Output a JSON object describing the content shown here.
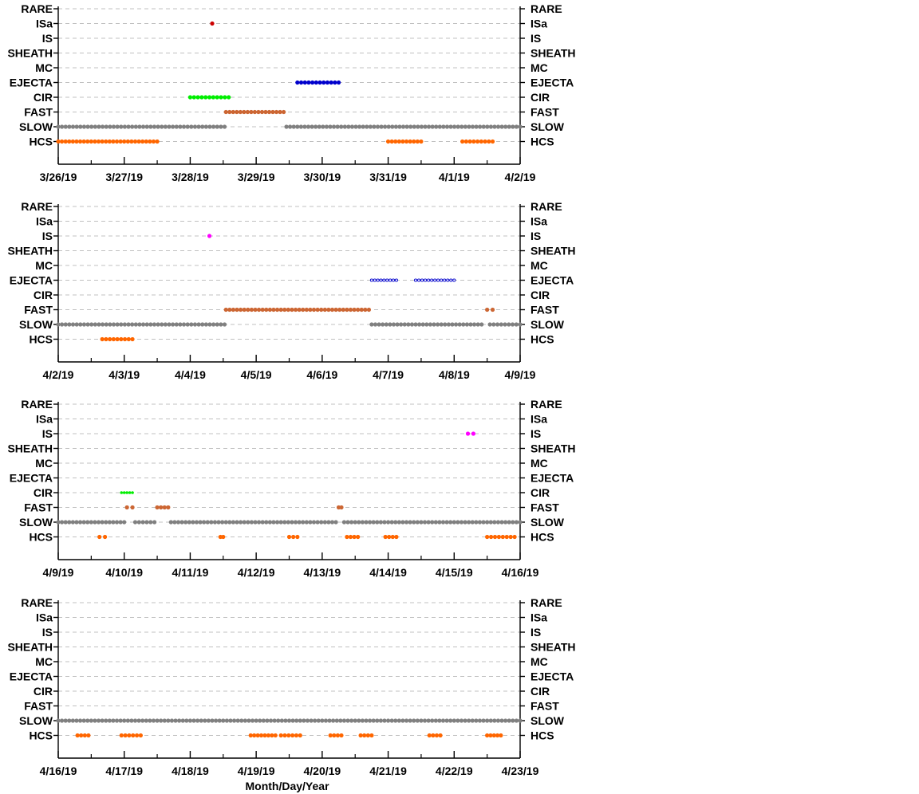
{
  "categories": [
    "RARE",
    "ISa",
    "IS",
    "SHEATH",
    "MC",
    "EJECTA",
    "CIR",
    "FAST",
    "SLOW",
    "HCS"
  ],
  "colors": {
    "ISa": "#cc0000",
    "IS": "#ff00ff",
    "EJECTA": "#0000cc",
    "CIR": "#00ee00",
    "FAST": "#cc6633",
    "SLOW": "#808080",
    "HCS": "#ff6600",
    "axis": "#000000",
    "grid": "#c0c0c0"
  },
  "xlabel": "Month/Day/Year",
  "chart_data": [
    {
      "type": "scatter",
      "grid": true,
      "y_categories": [
        "RARE",
        "ISa",
        "IS",
        "SHEATH",
        "MC",
        "EJECTA",
        "CIR",
        "FAST",
        "SLOW",
        "HCS"
      ],
      "x_range": [
        "3/26/19",
        "4/2/19"
      ],
      "x_ticks": [
        "3/26/19",
        "3/27/19",
        "3/28/19",
        "3/29/19",
        "3/30/19",
        "3/31/19",
        "4/1/19",
        "4/2/19"
      ],
      "segments": [
        {
          "cat": "ISa",
          "start": "3/28/19 08:00",
          "end": "3/28/19 08:00",
          "style": "dense"
        },
        {
          "cat": "EJECTA",
          "start": "3/29/19 15:00",
          "end": "3/30/19 06:00",
          "style": "dense"
        },
        {
          "cat": "CIR",
          "start": "3/28/19 00:00",
          "end": "3/28/19 14:00",
          "style": "dense"
        },
        {
          "cat": "FAST",
          "start": "3/28/19 13:00",
          "end": "3/29/19 10:00",
          "style": "dense"
        },
        {
          "cat": "SLOW",
          "start": "3/26/19 00:00",
          "end": "3/28/19 12:30",
          "style": "dense"
        },
        {
          "cat": "SLOW",
          "start": "3/29/19 11:00",
          "end": "4/2/19 00:00",
          "style": "dense"
        },
        {
          "cat": "HCS",
          "start": "3/26/19 00:00",
          "end": "3/27/19 12:00",
          "style": "dense"
        },
        {
          "cat": "HCS",
          "start": "3/31/19 00:00",
          "end": "3/31/19 12:00",
          "style": "dense"
        },
        {
          "cat": "HCS",
          "start": "4/1/19 03:00",
          "end": "4/1/19 14:00",
          "style": "dense"
        }
      ]
    },
    {
      "type": "scatter",
      "grid": true,
      "y_categories": [
        "RARE",
        "ISa",
        "IS",
        "SHEATH",
        "MC",
        "EJECTA",
        "CIR",
        "FAST",
        "SLOW",
        "HCS"
      ],
      "x_range": [
        "4/2/19",
        "4/9/19"
      ],
      "x_ticks": [
        "4/2/19",
        "4/3/19",
        "4/4/19",
        "4/5/19",
        "4/6/19",
        "4/7/19",
        "4/8/19",
        "4/9/19"
      ],
      "segments": [
        {
          "cat": "IS",
          "start": "4/4/19 07:00",
          "end": "4/4/19 07:00",
          "style": "dense"
        },
        {
          "cat": "EJECTA",
          "start": "4/6/19 18:00",
          "end": "4/7/19 03:00",
          "style": "open"
        },
        {
          "cat": "EJECTA",
          "start": "4/7/19 10:00",
          "end": "4/8/19 00:00",
          "style": "open"
        },
        {
          "cat": "FAST",
          "start": "4/4/19 13:00",
          "end": "4/6/19 17:00",
          "style": "dense"
        },
        {
          "cat": "FAST",
          "start": "4/8/19 12:00",
          "end": "4/8/19 14:00",
          "style": "dense"
        },
        {
          "cat": "SLOW",
          "start": "4/2/19 00:00",
          "end": "4/4/19 12:30",
          "style": "dense"
        },
        {
          "cat": "SLOW",
          "start": "4/6/19 18:00",
          "end": "4/8/19 10:00",
          "style": "dense"
        },
        {
          "cat": "SLOW",
          "start": "4/8/19 13:00",
          "end": "4/9/19 00:00",
          "style": "dense"
        },
        {
          "cat": "HCS",
          "start": "4/2/19 16:00",
          "end": "4/3/19 03:00",
          "style": "dense"
        }
      ]
    },
    {
      "type": "scatter",
      "grid": true,
      "y_categories": [
        "RARE",
        "ISa",
        "IS",
        "SHEATH",
        "MC",
        "EJECTA",
        "CIR",
        "FAST",
        "SLOW",
        "HCS"
      ],
      "x_range": [
        "4/9/19",
        "4/16/19"
      ],
      "x_ticks": [
        "4/9/19",
        "4/10/19",
        "4/11/19",
        "4/12/19",
        "4/13/19",
        "4/14/19",
        "4/15/19",
        "4/16/19"
      ],
      "segments": [
        {
          "cat": "IS",
          "start": "4/15/19 05:00",
          "end": "4/15/19 07:00",
          "style": "dense"
        },
        {
          "cat": "CIR",
          "start": "4/9/19 23:00",
          "end": "4/10/19 03:00",
          "style": "sparse"
        },
        {
          "cat": "FAST",
          "start": "4/10/19 01:00",
          "end": "4/10/19 03:00",
          "style": "dense"
        },
        {
          "cat": "FAST",
          "start": "4/10/19 12:00",
          "end": "4/10/19 16:00",
          "style": "dense"
        },
        {
          "cat": "FAST",
          "start": "4/13/19 06:00",
          "end": "4/13/19 07:00",
          "style": "dense"
        },
        {
          "cat": "SLOW",
          "start": "4/9/19 00:00",
          "end": "4/10/19 00:00",
          "style": "dense"
        },
        {
          "cat": "SLOW",
          "start": "4/10/19 04:00",
          "end": "4/10/19 11:00",
          "style": "dense"
        },
        {
          "cat": "SLOW",
          "start": "4/10/19 17:00",
          "end": "4/13/19 05:00",
          "style": "dense"
        },
        {
          "cat": "SLOW",
          "start": "4/13/19 08:00",
          "end": "4/16/19 00:00",
          "style": "dense"
        },
        {
          "cat": "HCS",
          "start": "4/9/19 15:00",
          "end": "4/9/19 17:00",
          "style": "dense"
        },
        {
          "cat": "HCS",
          "start": "4/11/19 11:00",
          "end": "4/11/19 12:00",
          "style": "dense"
        },
        {
          "cat": "HCS",
          "start": "4/12/19 12:00",
          "end": "4/12/19 15:00",
          "style": "dense"
        },
        {
          "cat": "HCS",
          "start": "4/13/19 09:00",
          "end": "4/13/19 13:00",
          "style": "dense"
        },
        {
          "cat": "HCS",
          "start": "4/13/19 23:00",
          "end": "4/14/19 03:00",
          "style": "dense"
        },
        {
          "cat": "HCS",
          "start": "4/15/19 12:00",
          "end": "4/15/19 22:00",
          "style": "dense"
        }
      ]
    },
    {
      "type": "scatter",
      "grid": true,
      "y_categories": [
        "RARE",
        "ISa",
        "IS",
        "SHEATH",
        "MC",
        "EJECTA",
        "CIR",
        "FAST",
        "SLOW",
        "HCS"
      ],
      "x_range": [
        "4/16/19",
        "4/23/19"
      ],
      "x_ticks": [
        "4/16/19",
        "4/17/19",
        "4/18/19",
        "4/19/19",
        "4/20/19",
        "4/21/19",
        "4/22/19",
        "4/23/19"
      ],
      "segments": [
        {
          "cat": "SLOW",
          "start": "4/16/19 00:00",
          "end": "4/23/19 00:00",
          "style": "dense"
        },
        {
          "cat": "HCS",
          "start": "4/16/19 07:00",
          "end": "4/16/19 11:00",
          "style": "dense"
        },
        {
          "cat": "HCS",
          "start": "4/16/19 23:00",
          "end": "4/17/19 06:00",
          "style": "dense"
        },
        {
          "cat": "HCS",
          "start": "4/18/19 22:00",
          "end": "4/19/19 07:00",
          "style": "dense"
        },
        {
          "cat": "HCS",
          "start": "4/19/19 09:00",
          "end": "4/19/19 16:00",
          "style": "dense"
        },
        {
          "cat": "HCS",
          "start": "4/20/19 03:00",
          "end": "4/20/19 07:00",
          "style": "dense"
        },
        {
          "cat": "HCS",
          "start": "4/20/19 14:00",
          "end": "4/20/19 18:00",
          "style": "dense"
        },
        {
          "cat": "HCS",
          "start": "4/21/19 15:00",
          "end": "4/21/19 19:00",
          "style": "dense"
        },
        {
          "cat": "HCS",
          "start": "4/22/19 12:00",
          "end": "4/22/19 17:00",
          "style": "dense"
        }
      ]
    }
  ]
}
